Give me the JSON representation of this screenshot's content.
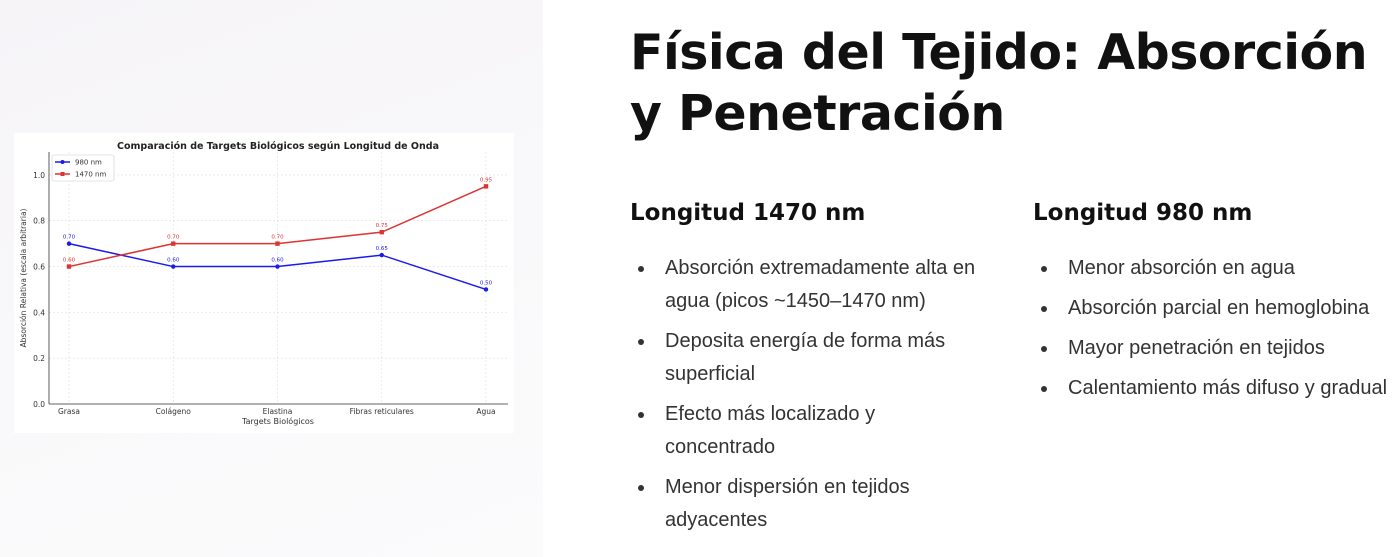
{
  "slide": {
    "title": "Física del Tejido: Absorción y Penetración",
    "columns": [
      {
        "heading": "Longitud 1470 nm",
        "bullets": [
          "Absorción extremadamente alta en agua (picos ~1450–1470 nm)",
          "Deposita energía de forma más superficial",
          "Efecto más localizado y concentrado",
          "Menor dispersión en tejidos adyacentes"
        ]
      },
      {
        "heading": "Longitud 980 nm",
        "bullets": [
          "Menor absorción en agua",
          "Absorción parcial en hemoglobina",
          "Mayor penetración en tejidos",
          "Calentamiento más difuso y gradual"
        ]
      }
    ]
  },
  "chart_data": {
    "type": "line",
    "title": "Comparación de Targets Biológicos según Longitud de Onda",
    "xlabel": "Targets Biológicos",
    "ylabel": "Absorción Relativa (escala arbitraria)",
    "categories": [
      "Grasa",
      "Colágeno",
      "Elastina",
      "Fibras reticulares",
      "Agua"
    ],
    "ylim": [
      0,
      1.1
    ],
    "yticks": [
      "0.0",
      "0.2",
      "0.4",
      "0.6",
      "0.8",
      "1.0"
    ],
    "grid": true,
    "legend": "top-left",
    "series": [
      {
        "name": "980 nm",
        "color": "#1a1aee",
        "marker": "circle",
        "values": [
          0.7,
          0.6,
          0.6,
          0.65,
          0.5
        ]
      },
      {
        "name": "1470 nm",
        "color": "#dd3333",
        "marker": "square",
        "values": [
          0.6,
          0.7,
          0.7,
          0.75,
          0.95
        ]
      }
    ]
  }
}
